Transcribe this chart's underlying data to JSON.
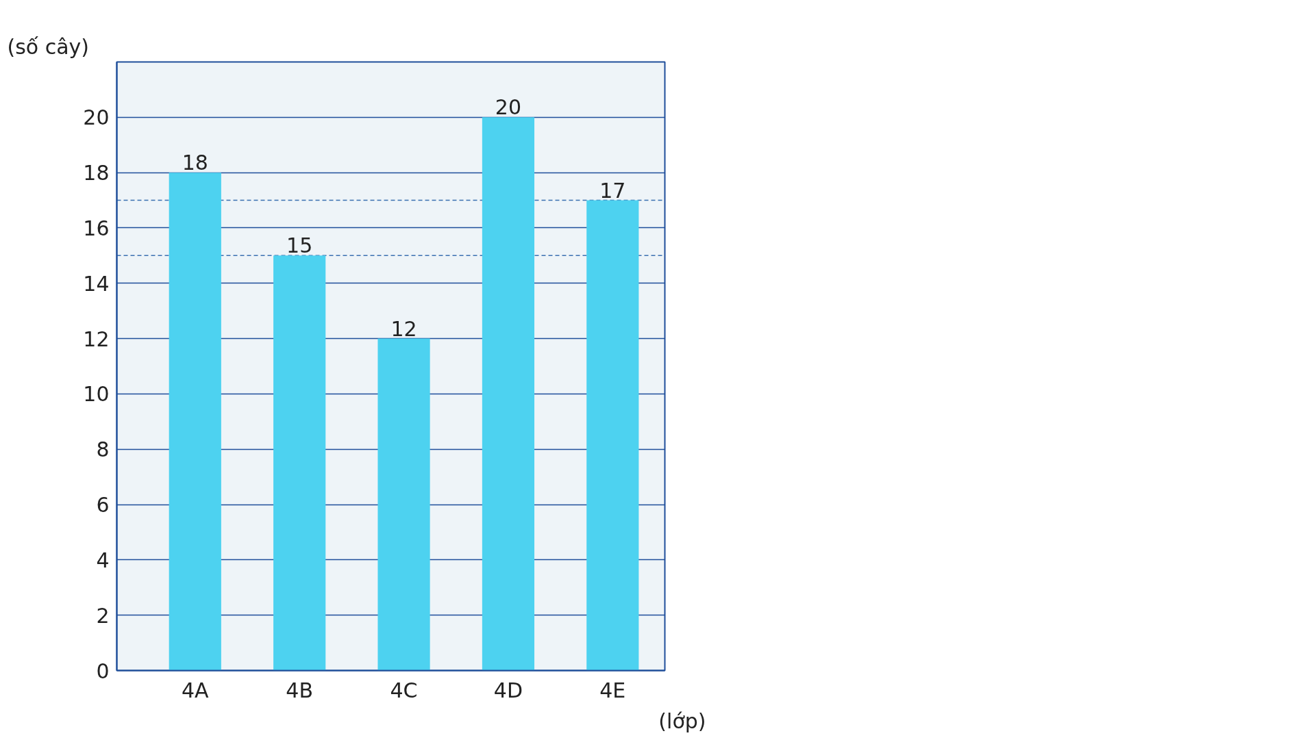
{
  "chart_data": {
    "type": "bar",
    "xlabel": "(lớp)",
    "ylabel": "(số cây)",
    "categories": [
      "4A",
      "4B",
      "4C",
      "4D",
      "4E"
    ],
    "values": [
      18,
      15,
      12,
      20,
      17
    ],
    "color": "#4dd2f0",
    "ylim": [
      0,
      22
    ],
    "yticks": [
      0,
      2,
      4,
      6,
      8,
      10,
      12,
      14,
      16,
      18,
      20
    ],
    "grid": "y",
    "data_labels": true,
    "ref_lines": [
      {
        "axis": "y",
        "value": 17,
        "line_style": "dashed",
        "color": "#3a6fb0"
      },
      {
        "axis": "y",
        "value": 15,
        "line_style": "dashed",
        "color": "#3a6fb0"
      }
    ]
  }
}
